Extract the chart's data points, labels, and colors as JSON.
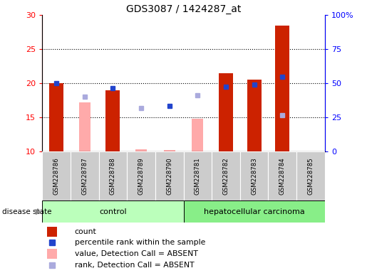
{
  "title": "GDS3087 / 1424287_at",
  "samples": [
    "GSM228786",
    "GSM228787",
    "GSM228788",
    "GSM228789",
    "GSM228790",
    "GSM228781",
    "GSM228782",
    "GSM228783",
    "GSM228784",
    "GSM228785"
  ],
  "count_values": [
    20.0,
    null,
    19.0,
    null,
    null,
    null,
    21.5,
    20.5,
    28.5,
    null
  ],
  "percentile_values": [
    20.0,
    null,
    19.3,
    null,
    16.7,
    null,
    19.5,
    19.8,
    21.0,
    null
  ],
  "absent_value_values": [
    null,
    17.2,
    null,
    10.3,
    10.2,
    14.8,
    null,
    null,
    null,
    null
  ],
  "absent_rank_values": [
    null,
    18.0,
    null,
    16.4,
    null,
    18.2,
    null,
    null,
    15.3,
    null
  ],
  "ylim": [
    10,
    30
  ],
  "yticks_left": [
    10,
    15,
    20,
    25,
    30
  ],
  "yticks_right_pos": [
    10,
    15,
    20,
    25,
    30
  ],
  "yticks_right_labels": [
    "0",
    "25",
    "50",
    "75",
    "100%"
  ],
  "bar_color_count": "#cc2200",
  "bar_color_absent": "#ffaaaa",
  "dot_color_percentile": "#2244cc",
  "dot_color_absent_rank": "#aaaadd",
  "control_color": "#bbffbb",
  "hcc_color": "#88ee88",
  "label_bg_color": "#cccccc",
  "figsize": [
    5.15,
    3.84
  ],
  "dpi": 100,
  "bar_width": 0.5,
  "dot_size": 5
}
